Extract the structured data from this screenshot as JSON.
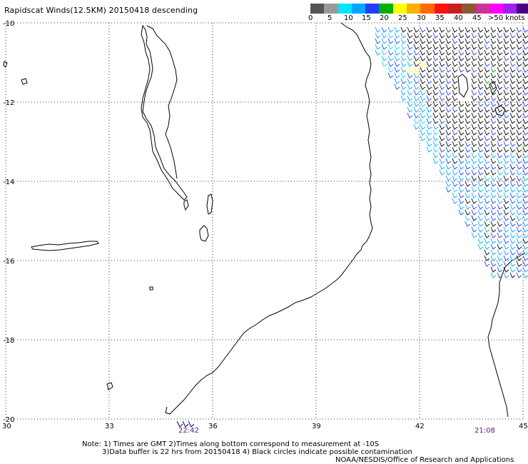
{
  "title": "Rapidscat Winds(12.5KM) 20150418 descending",
  "colorbar": {
    "swatches": [
      "#555555",
      "#999999",
      "#00e5ff",
      "#00a8ff",
      "#1f3fff",
      "#00b000",
      "#ffff00",
      "#ffb000",
      "#ff6a00",
      "#ff1010",
      "#c81e1e",
      "#8a5a32",
      "#cc3399",
      "#ff00ff",
      "#a020f0",
      "#4b0082"
    ],
    "labels": [
      "0",
      "5",
      "10",
      "15",
      "20",
      "25",
      "30",
      "35",
      "40",
      "45",
      ">50 knots"
    ]
  },
  "axes": {
    "lat_labels": [
      "-10",
      "-12",
      "-14",
      "-16",
      "-18",
      "-20"
    ],
    "lon_labels": [
      "30",
      "33",
      "36",
      "39",
      "42",
      "45"
    ]
  },
  "time_labels": {
    "left": "22:42",
    "right": "21:08"
  },
  "notes": {
    "line1": "Note: 1) Times are GMT 2)Times along bottom correspond to measurement at -10S",
    "line2": "3)Data buffer is 22 hrs from 20150418 4) Black circles indicate possible contamination",
    "line3": "NOAA/NESDIS/Office of Research and Applications"
  },
  "icons": {
    "wind_barb": "wind-barb-icon"
  },
  "colors": {
    "coastline": "#000000",
    "grid": "#000000",
    "time_label": "#5a1a78"
  }
}
